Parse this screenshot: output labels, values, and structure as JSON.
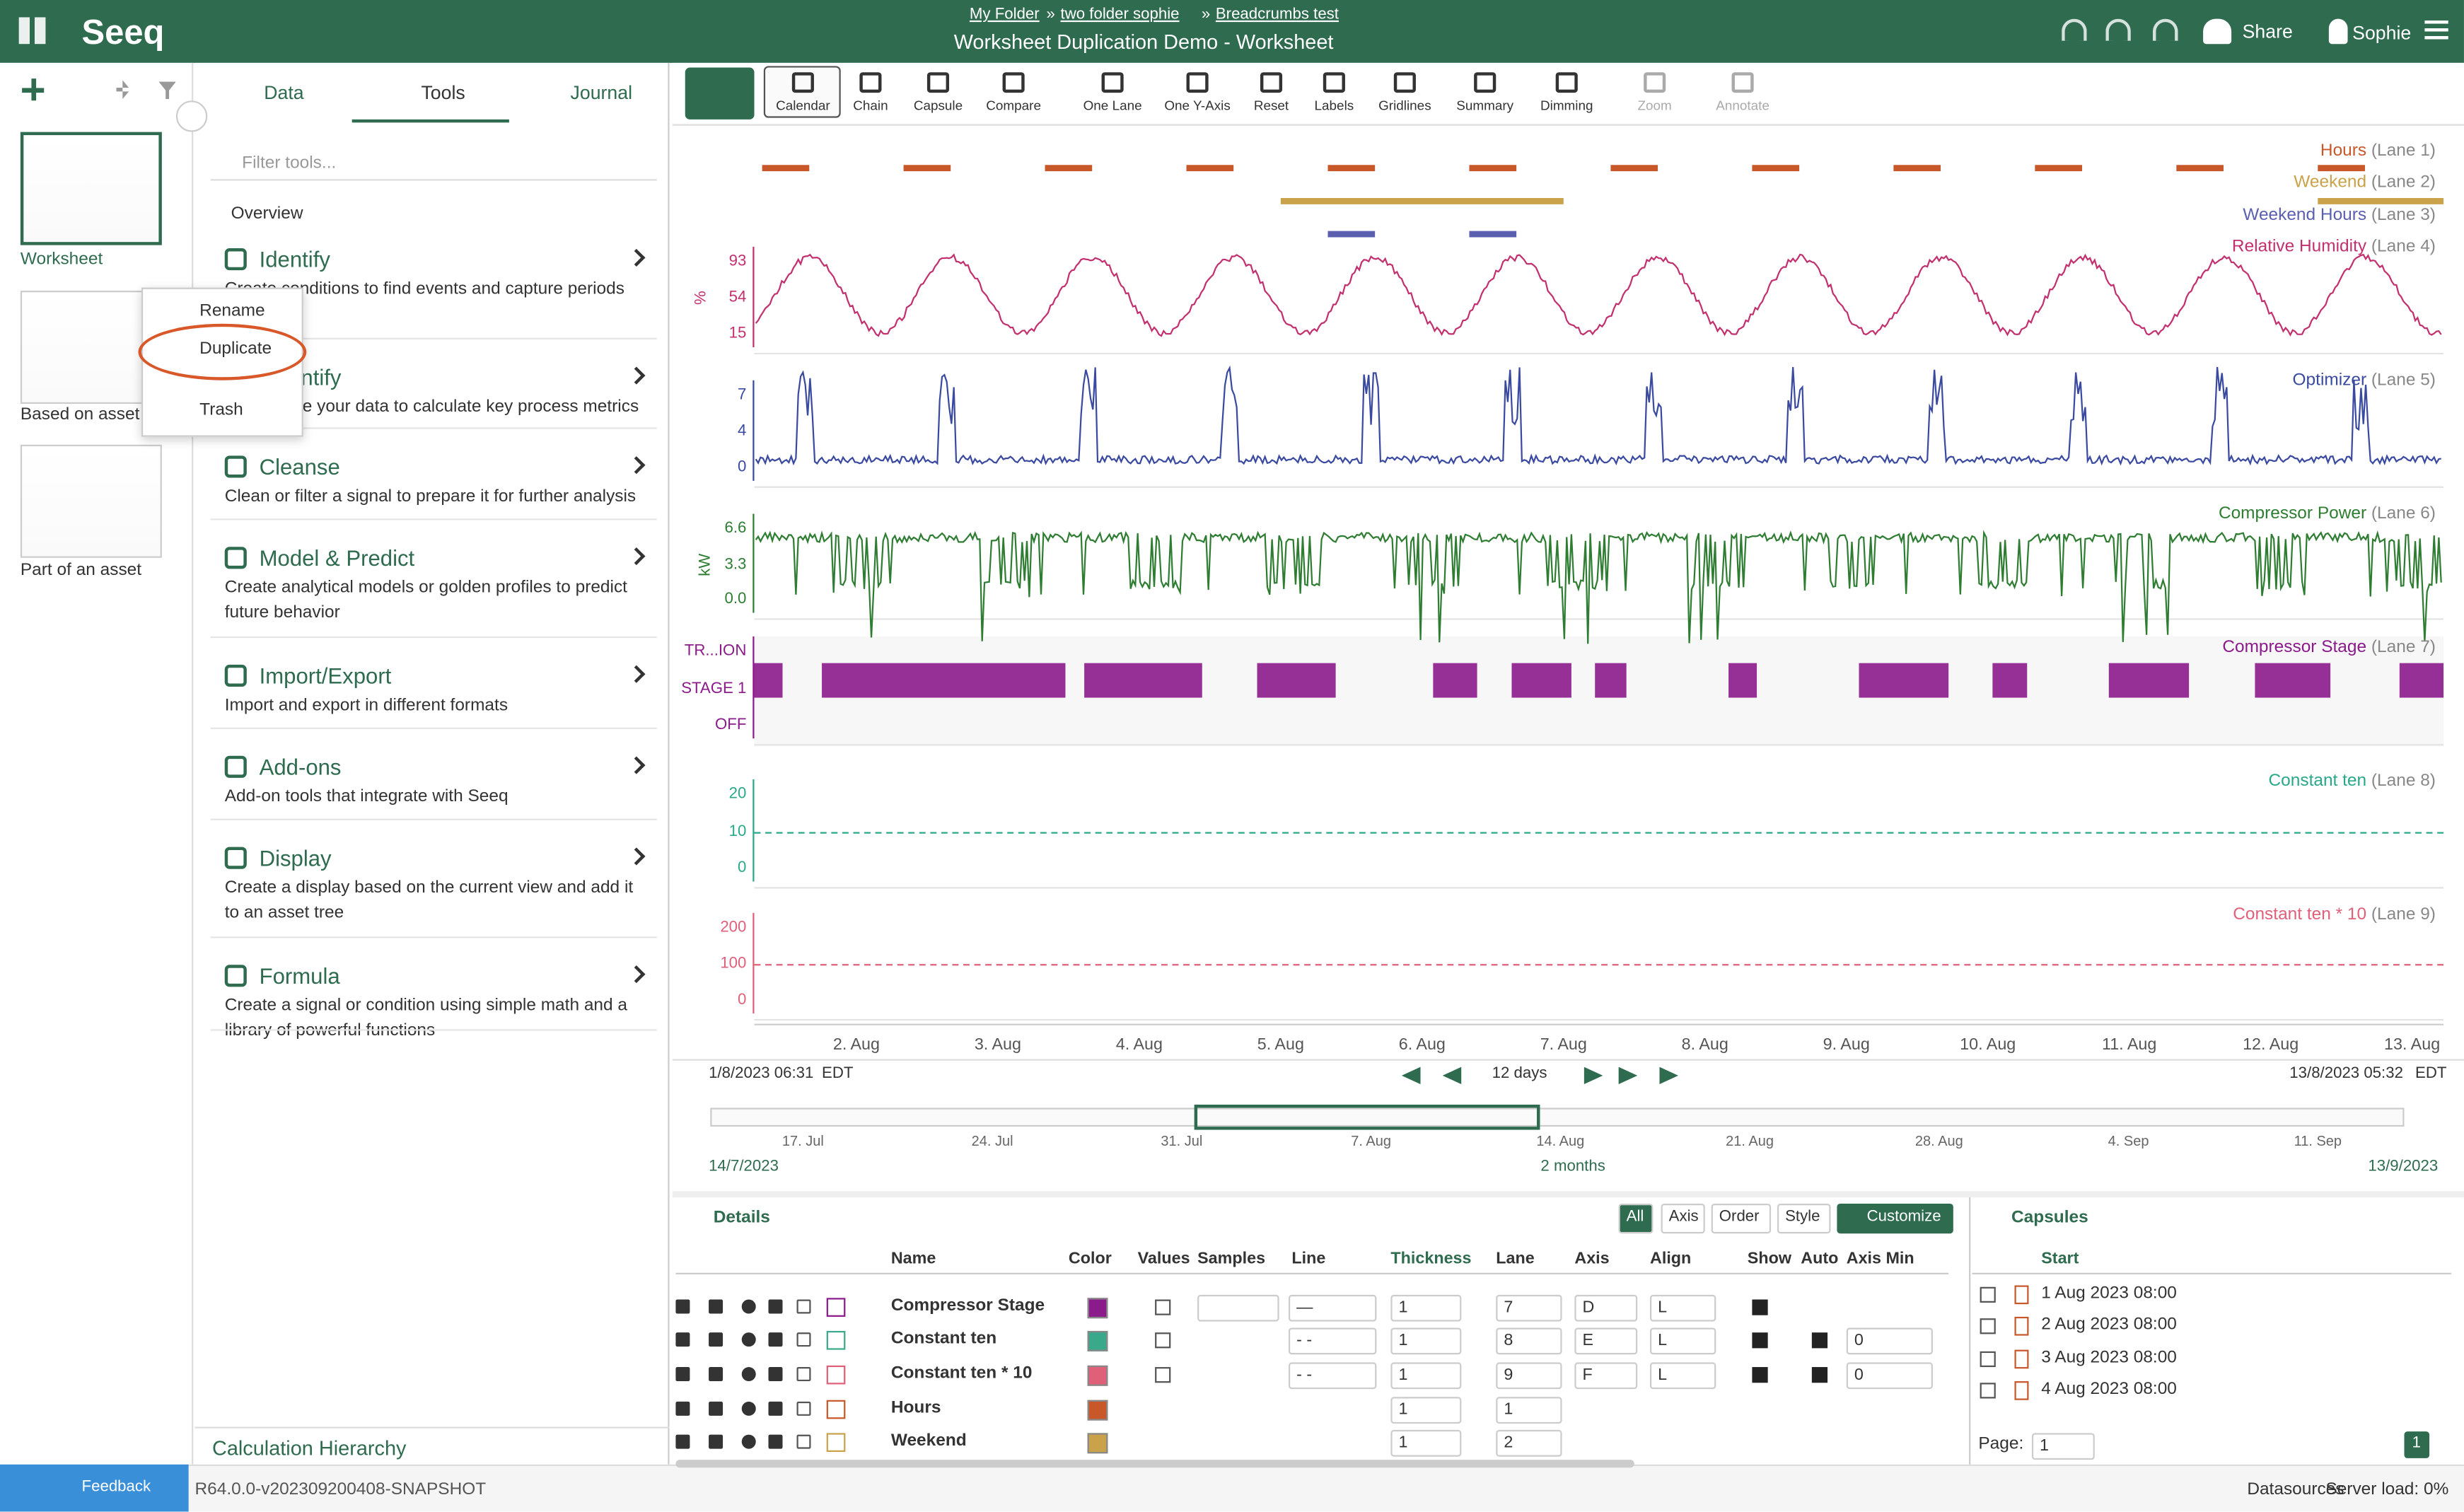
{
  "header": {
    "logo": "Seeq",
    "breadcrumbs": [
      "My Folder",
      "two folder sophie",
      "Breadcrumbs test"
    ],
    "separator": "»",
    "title": "Worksheet Duplication Demo - Worksheet",
    "share": "Share",
    "user": "Sophie"
  },
  "worksheets": [
    "Worksheet",
    "Based on asset",
    "Part of an asset"
  ],
  "context_menu": [
    "Rename",
    "Duplicate",
    "Trash"
  ],
  "tabs": [
    "Data",
    "Tools",
    "Journal"
  ],
  "search_placeholder": "Filter tools...",
  "overview": "Overview",
  "tools": [
    {
      "name": "Identify",
      "description": "Create conditions to find events and capture periods"
    },
    {
      "name": "Quantify",
      "description": "Summarize your data to calculate key process metrics"
    },
    {
      "name": "Cleanse",
      "description": "Clean or filter a signal to prepare it for further analysis"
    },
    {
      "name": "Model & Predict",
      "description": "Create analytical models or golden profiles to predict future behavior"
    },
    {
      "name": "Import/Export",
      "description": "Import and export in different formats"
    },
    {
      "name": "Add-ons",
      "description": "Add-on tools that integrate with Seeq"
    },
    {
      "name": "Display",
      "description": "Create a display based on the current view and add it to an asset tree"
    },
    {
      "name": "Formula",
      "description": "Create a signal or condition using simple math and a library of powerful functions"
    }
  ],
  "calc_hierarchy": "Calculation Hierarchy",
  "toolbar": [
    "Calendar",
    "Chain",
    "Capsule",
    "Compare",
    "One Lane",
    "One Y-Axis",
    "Reset",
    "Labels",
    "Gridlines",
    "Summary",
    "Dimming",
    "Zoom",
    "Annotate"
  ],
  "lanes": [
    {
      "name": "Hours",
      "lane": "(Lane 1)",
      "color": "#c8582a"
    },
    {
      "name": "Weekend",
      "lane": "(Lane 2)",
      "color": "#c9a24a"
    },
    {
      "name": "Weekend Hours",
      "lane": "(Lane 3)",
      "color": "#5a5fb0"
    },
    {
      "name": "Relative Humidity",
      "lane": "(Lane 4)",
      "color": "#c2306f",
      "unit": "%",
      "ticks": [
        "93",
        "54",
        "15"
      ]
    },
    {
      "name": "Optimizer",
      "lane": "(Lane 5)",
      "color": "#3a4aa0",
      "ticks": [
        "7",
        "4",
        "0"
      ]
    },
    {
      "name": "Compressor Power",
      "lane": "(Lane 6)",
      "color": "#2e7d32",
      "unit": "kW",
      "ticks": [
        "6.6",
        "3.3",
        "0.0"
      ]
    },
    {
      "name": "Compressor Stage",
      "lane": "(Lane 7)",
      "color": "#8b1a8b",
      "ticks": [
        "TR...ION",
        "STAGE 1",
        "OFF"
      ]
    },
    {
      "name": "Constant ten",
      "lane": "(Lane 8)",
      "color": "#2aa88a",
      "ticks": [
        "20",
        "10",
        "0"
      ]
    },
    {
      "name": "Constant ten * 10",
      "lane": "(Lane 9)",
      "color": "#e0607a",
      "ticks": [
        "200",
        "100",
        "0"
      ]
    }
  ],
  "x_axis": [
    "2. Aug",
    "3. Aug",
    "4. Aug",
    "5. Aug",
    "6. Aug",
    "7. Aug",
    "8. Aug",
    "9. Aug",
    "10. Aug",
    "11. Aug",
    "12. Aug",
    "13. Aug"
  ],
  "range": {
    "start": "1/8/2023 06:31",
    "start_tz": "EDT",
    "duration": "12 days",
    "end": "13/8/2023 05:32",
    "end_tz": "EDT"
  },
  "overview_axis": [
    "17. Jul",
    "24. Jul",
    "31. Jul",
    "7. Aug",
    "14. Aug",
    "21. Aug",
    "28. Aug",
    "4. Sep",
    "11. Sep"
  ],
  "overview_range": {
    "start": "14/7/2023",
    "duration": "2 months",
    "end": "13/9/2023"
  },
  "details": {
    "title": "Details",
    "tabs": [
      "All",
      "Axis",
      "Order",
      "Style"
    ],
    "customize": "Customize",
    "columns": [
      "Name",
      "Color",
      "Values",
      "Samples",
      "Line",
      "Thickness",
      "Lane",
      "Axis",
      "Align",
      "Show",
      "Auto",
      "Axis Min"
    ],
    "rows": [
      {
        "name": "Compressor Stage",
        "color": "#8b1a8b",
        "line": "—",
        "thickness": "1",
        "lane": "7",
        "axis": "D",
        "align": "L"
      },
      {
        "name": "Constant ten",
        "color": "#3aa88a",
        "line": "- -",
        "thickness": "1",
        "lane": "8",
        "axis": "E",
        "align": "L",
        "axis_min": "0"
      },
      {
        "name": "Constant ten * 10",
        "color": "#e0607a",
        "line": "- -",
        "thickness": "1",
        "lane": "9",
        "axis": "F",
        "align": "L",
        "axis_min": "0"
      },
      {
        "name": "Hours",
        "color": "#c8582a",
        "thickness": "1",
        "lane": "1"
      },
      {
        "name": "Weekend",
        "color": "#c9a24a",
        "thickness": "1",
        "lane": "2"
      }
    ]
  },
  "capsules": {
    "title": "Capsules",
    "column": "Start",
    "rows": [
      "1 Aug 2023 08:00",
      "2 Aug 2023 08:00",
      "3 Aug 2023 08:00",
      "4 Aug 2023 08:00"
    ],
    "page_label": "Page:",
    "page": "1"
  },
  "footer": {
    "feedback": "Feedback",
    "version": "R64.0.0-v202309200408-SNAPSHOT",
    "datasources": "Datasources",
    "server_load": "Server load: 0%"
  }
}
